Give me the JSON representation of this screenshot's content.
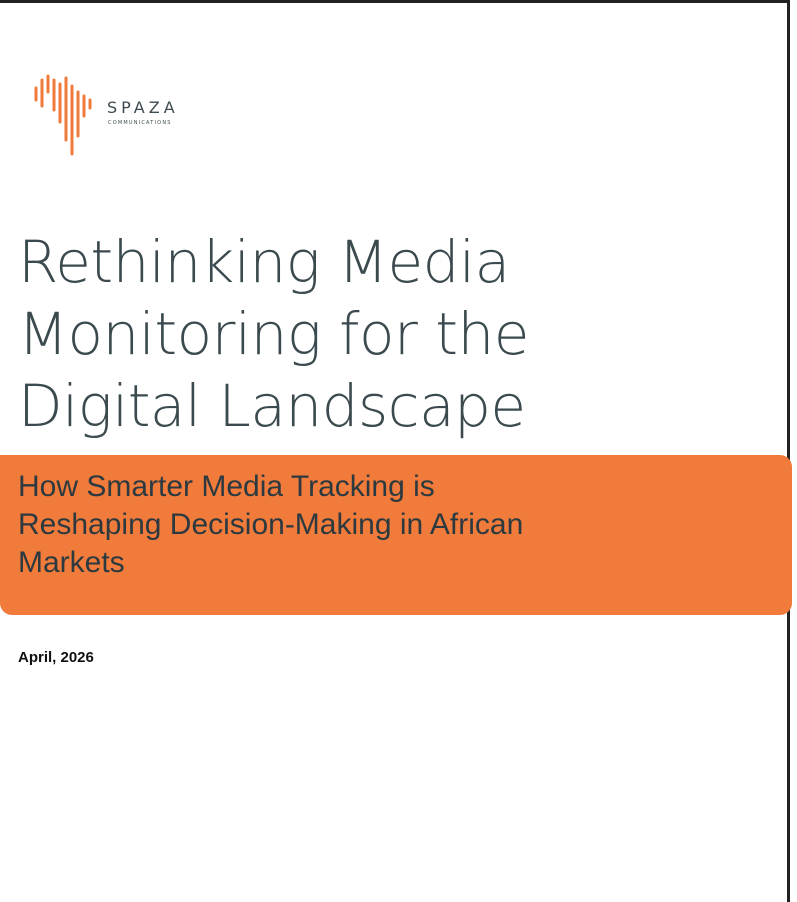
{
  "logo": {
    "name": "SPAZA",
    "tagline": "COMMUNICATIONS"
  },
  "title_lines": [
    "Rethinking Media",
    "Monitoring for the",
    "Digital Landscape"
  ],
  "subtitle_lines": [
    "How Smarter Media Tracking is",
    "Reshaping Decision-Making in African",
    "Markets"
  ],
  "date": "April, 2026"
}
